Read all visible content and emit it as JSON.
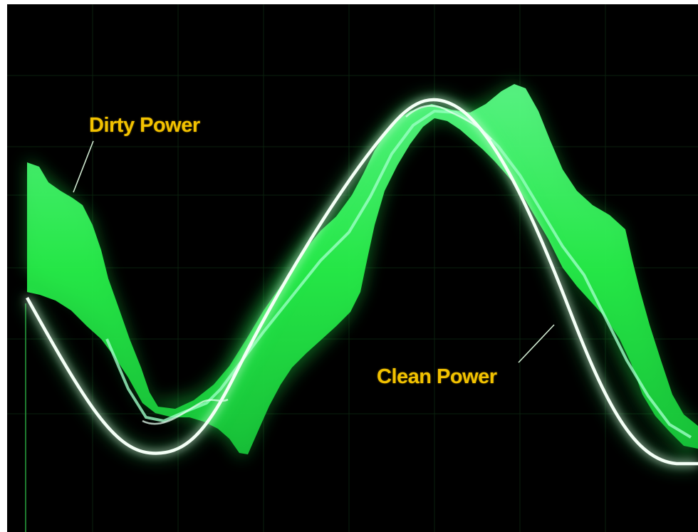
{
  "labels": {
    "dirty": "Dirty Power",
    "clean": "Clean Power"
  },
  "colors": {
    "background": "#000000",
    "dirty_trace": "#27f24a",
    "dirty_trace_bright": "#8dffc0",
    "clean_trace": "#f4fff6",
    "clean_glow": "#2dff6a",
    "label_text": "#f2c200",
    "pointer_line": "#cfe8d0"
  }
}
